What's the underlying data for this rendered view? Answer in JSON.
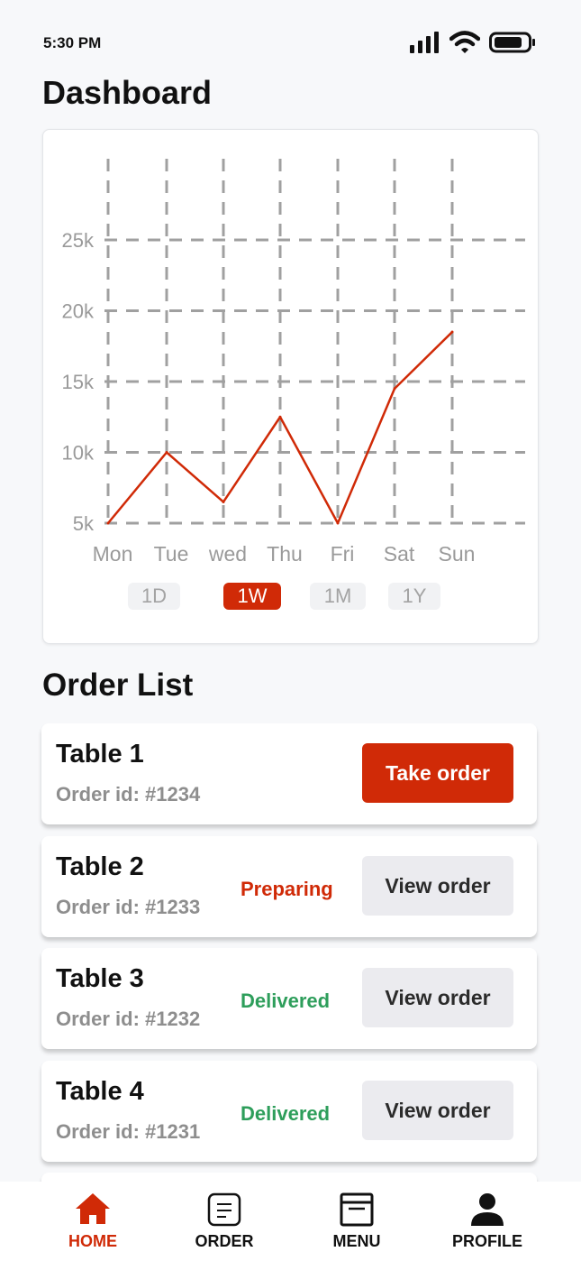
{
  "status_bar": {
    "time": "5:30 PM"
  },
  "page_title": "Dashboard",
  "chart_data": {
    "type": "line",
    "categories": [
      "Mon",
      "Tue",
      "wed",
      "Thu",
      "Fri",
      "Sat",
      "Sun"
    ],
    "values": [
      5000,
      10000,
      6500,
      12500,
      5000,
      14500,
      18500
    ],
    "y_ticks": [
      "5k",
      "10k",
      "15k",
      "20k",
      "25k"
    ],
    "y_tick_values": [
      5000,
      10000,
      15000,
      20000,
      25000
    ],
    "ylim": [
      5000,
      25000
    ],
    "grid": true,
    "line_color": "#d02a07"
  },
  "range_tabs": [
    {
      "label": "1D",
      "active": false
    },
    {
      "label": "1W",
      "active": true
    },
    {
      "label": "1M",
      "active": false
    },
    {
      "label": "1Y",
      "active": false
    }
  ],
  "order_list": {
    "title": "Order List",
    "id_prefix": "Order id: ",
    "orders": [
      {
        "table": "Table 1",
        "order_id": "Order id: #1234",
        "status": "",
        "status_color": "",
        "button": "Take order",
        "button_style": "primary"
      },
      {
        "table": "Table 2",
        "order_id": "Order id: #1233",
        "status": "Preparing",
        "status_color": "#d02a07",
        "button": "View order",
        "button_style": "secondary"
      },
      {
        "table": "Table 3",
        "order_id": "Order id: #1232",
        "status": "Delivered",
        "status_color": "#2e9e5b",
        "button": "View order",
        "button_style": "secondary"
      },
      {
        "table": "Table 4",
        "order_id": "Order id: #1231",
        "status": "Delivered",
        "status_color": "#2e9e5b",
        "button": "View order",
        "button_style": "secondary"
      }
    ]
  },
  "bottom_nav": [
    {
      "label": "HOME",
      "icon": "home-icon",
      "active": true
    },
    {
      "label": "ORDER",
      "icon": "order-icon",
      "active": false
    },
    {
      "label": "MENU",
      "icon": "menu-icon",
      "active": false
    },
    {
      "label": "PROFILE",
      "icon": "profile-icon",
      "active": false
    }
  ],
  "colors": {
    "accent": "#d02a07",
    "success": "#2e9e5b",
    "muted": "#8e8e8e"
  }
}
